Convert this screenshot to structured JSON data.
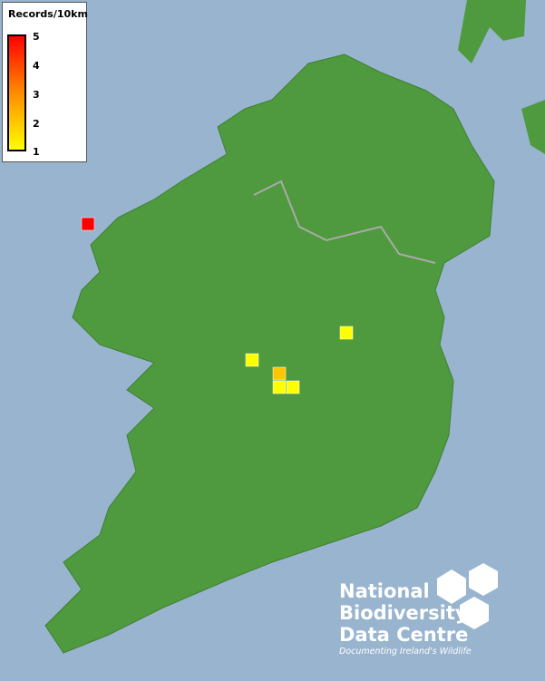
{
  "legend": {
    "title": "Records/10km",
    "ticks": [
      "5",
      "4",
      "3",
      "2",
      "1"
    ],
    "color_min": "#ffff00",
    "color_mid": "#ff8c00",
    "color_max": "#ff0000"
  },
  "records": [
    {
      "value": 5
    },
    {
      "value": 1
    },
    {
      "value": 1
    },
    {
      "value": 2
    },
    {
      "value": 1
    },
    {
      "value": 1
    }
  ],
  "colors": {
    "sea": "#98b4cf",
    "land": "#4f9a3e"
  },
  "logo": {
    "line1": "National",
    "line2": "Biodiversity",
    "line3": "Data Centre",
    "tagline": "Documenting Ireland's Wildlife"
  }
}
